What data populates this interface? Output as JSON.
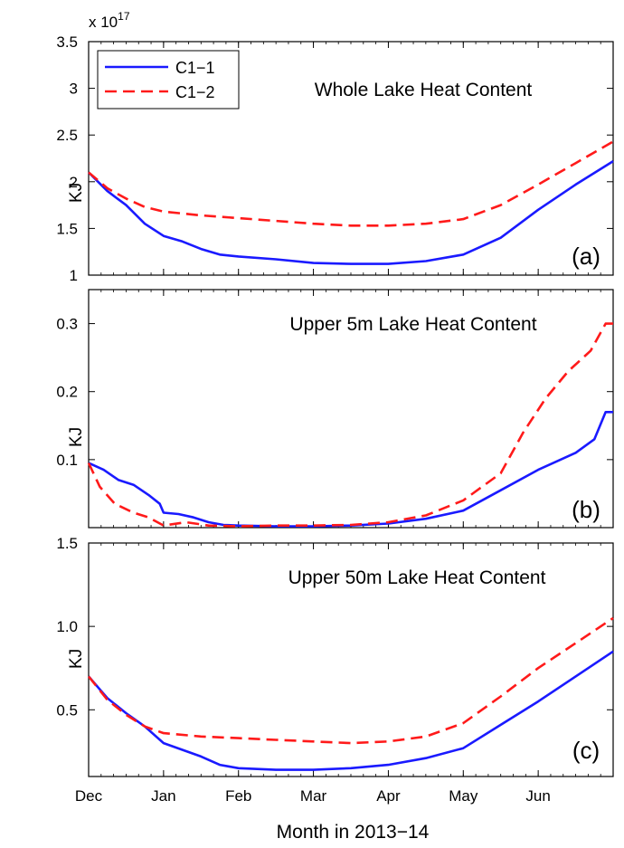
{
  "chart_data": [
    {
      "type": "line",
      "title": "Whole Lake Heat Content",
      "panel_tag": "(a)",
      "ylabel": "KJ",
      "y_multiplier": "x 10",
      "y_exponent": "17",
      "ylim": [
        1,
        3.5
      ],
      "yticks": [
        1,
        1.5,
        2,
        2.5,
        3,
        3.5
      ],
      "ytick_labels": [
        "1",
        "1.5",
        "2",
        "2.5",
        "3",
        "3.5"
      ],
      "xlim": [
        0,
        7
      ],
      "grid": false,
      "legend": {
        "placement": "top-left",
        "entries": [
          {
            "name": "C1−1",
            "color": "#1a1aff",
            "dash": "solid"
          },
          {
            "name": "C1−2",
            "color": "#ff1a1a",
            "dash": "dashed"
          }
        ]
      },
      "series": [
        {
          "name": "C1−1",
          "color": "#1a1aff",
          "dash": "solid",
          "points": [
            [
              0,
              2.1
            ],
            [
              0.25,
              1.9
            ],
            [
              0.5,
              1.75
            ],
            [
              0.75,
              1.55
            ],
            [
              1.0,
              1.42
            ],
            [
              1.25,
              1.36
            ],
            [
              1.5,
              1.28
            ],
            [
              1.75,
              1.22
            ],
            [
              2.0,
              1.2
            ],
            [
              2.5,
              1.17
            ],
            [
              3.0,
              1.13
            ],
            [
              3.5,
              1.12
            ],
            [
              4.0,
              1.12
            ],
            [
              4.5,
              1.15
            ],
            [
              5.0,
              1.22
            ],
            [
              5.5,
              1.4
            ],
            [
              6.0,
              1.7
            ],
            [
              6.5,
              1.97
            ],
            [
              7.0,
              2.22
            ]
          ]
        },
        {
          "name": "C1−2",
          "color": "#ff1a1a",
          "dash": "dashed",
          "points": [
            [
              0,
              2.1
            ],
            [
              0.25,
              1.93
            ],
            [
              0.5,
              1.82
            ],
            [
              0.75,
              1.73
            ],
            [
              1.0,
              1.68
            ],
            [
              1.5,
              1.64
            ],
            [
              2.0,
              1.61
            ],
            [
              2.5,
              1.58
            ],
            [
              3.0,
              1.55
            ],
            [
              3.5,
              1.53
            ],
            [
              4.0,
              1.53
            ],
            [
              4.5,
              1.55
            ],
            [
              5.0,
              1.6
            ],
            [
              5.5,
              1.75
            ],
            [
              6.0,
              1.97
            ],
            [
              6.5,
              2.2
            ],
            [
              7.0,
              2.43
            ]
          ]
        }
      ]
    },
    {
      "type": "line",
      "title": "Upper 5m Lake Heat Content",
      "panel_tag": "(b)",
      "ylabel": "KJ",
      "ylim": [
        0,
        0.35
      ],
      "yticks": [
        0.1,
        0.2,
        0.3
      ],
      "ytick_labels": [
        "0.1",
        "0.2",
        "0.3"
      ],
      "xlim": [
        0,
        7
      ],
      "grid": false,
      "series": [
        {
          "name": "C1−1",
          "color": "#1a1aff",
          "dash": "solid",
          "points": [
            [
              0,
              0.095
            ],
            [
              0.2,
              0.085
            ],
            [
              0.4,
              0.07
            ],
            [
              0.6,
              0.063
            ],
            [
              0.8,
              0.048
            ],
            [
              0.95,
              0.035
            ],
            [
              1.0,
              0.022
            ],
            [
              1.2,
              0.02
            ],
            [
              1.4,
              0.015
            ],
            [
              1.6,
              0.008
            ],
            [
              1.8,
              0.004
            ],
            [
              2.0,
              0.003
            ],
            [
              2.5,
              0.002
            ],
            [
              3.0,
              0.002
            ],
            [
              3.5,
              0.003
            ],
            [
              4.0,
              0.006
            ],
            [
              4.5,
              0.013
            ],
            [
              5.0,
              0.025
            ],
            [
              5.5,
              0.055
            ],
            [
              6.0,
              0.085
            ],
            [
              6.5,
              0.11
            ],
            [
              6.75,
              0.13
            ],
            [
              6.9,
              0.17
            ],
            [
              7.0,
              0.17
            ]
          ]
        },
        {
          "name": "C1−2",
          "color": "#ff1a1a",
          "dash": "dashed",
          "points": [
            [
              0,
              0.095
            ],
            [
              0.15,
              0.06
            ],
            [
              0.35,
              0.035
            ],
            [
              0.6,
              0.022
            ],
            [
              0.8,
              0.015
            ],
            [
              1.0,
              0.003
            ],
            [
              1.3,
              0.008
            ],
            [
              1.6,
              0.003
            ],
            [
              2.0,
              0.002
            ],
            [
              2.5,
              0.003
            ],
            [
              3.0,
              0.003
            ],
            [
              3.5,
              0.004
            ],
            [
              4.0,
              0.008
            ],
            [
              4.5,
              0.018
            ],
            [
              5.0,
              0.04
            ],
            [
              5.5,
              0.08
            ],
            [
              5.8,
              0.14
            ],
            [
              6.1,
              0.19
            ],
            [
              6.4,
              0.23
            ],
            [
              6.7,
              0.26
            ],
            [
              6.9,
              0.3
            ],
            [
              7.0,
              0.3
            ]
          ]
        }
      ]
    },
    {
      "type": "line",
      "title": "Upper 50m Lake Heat Content",
      "panel_tag": "(c)",
      "ylabel": "KJ",
      "ylim": [
        0.1,
        1.5
      ],
      "yticks": [
        0.5,
        1.0,
        1.5
      ],
      "ytick_labels": [
        "0.5",
        "1.0",
        "1.5"
      ],
      "xlim": [
        0,
        7
      ],
      "xlabel": "Month in 2013−14",
      "categories": [
        "Dec",
        "Jan",
        "Feb",
        "Mar",
        "Apr",
        "May",
        "Jun"
      ],
      "grid": false,
      "series": [
        {
          "name": "C1−1",
          "color": "#1a1aff",
          "dash": "solid",
          "points": [
            [
              0,
              0.7
            ],
            [
              0.25,
              0.57
            ],
            [
              0.5,
              0.48
            ],
            [
              0.75,
              0.4
            ],
            [
              1.0,
              0.3
            ],
            [
              1.25,
              0.26
            ],
            [
              1.5,
              0.22
            ],
            [
              1.75,
              0.17
            ],
            [
              2.0,
              0.15
            ],
            [
              2.5,
              0.14
            ],
            [
              3.0,
              0.14
            ],
            [
              3.5,
              0.15
            ],
            [
              4.0,
              0.17
            ],
            [
              4.5,
              0.21
            ],
            [
              5.0,
              0.27
            ],
            [
              5.5,
              0.41
            ],
            [
              6.0,
              0.55
            ],
            [
              6.5,
              0.7
            ],
            [
              7.0,
              0.85
            ]
          ]
        },
        {
          "name": "C1−2",
          "color": "#ff1a1a",
          "dash": "dashed",
          "points": [
            [
              0,
              0.7
            ],
            [
              0.25,
              0.56
            ],
            [
              0.5,
              0.47
            ],
            [
              0.75,
              0.4
            ],
            [
              1.0,
              0.36
            ],
            [
              1.5,
              0.34
            ],
            [
              2.0,
              0.33
            ],
            [
              2.5,
              0.32
            ],
            [
              3.0,
              0.31
            ],
            [
              3.5,
              0.3
            ],
            [
              4.0,
              0.31
            ],
            [
              4.5,
              0.34
            ],
            [
              5.0,
              0.42
            ],
            [
              5.5,
              0.58
            ],
            [
              6.0,
              0.75
            ],
            [
              6.5,
              0.9
            ],
            [
              7.0,
              1.05
            ]
          ]
        }
      ]
    }
  ]
}
